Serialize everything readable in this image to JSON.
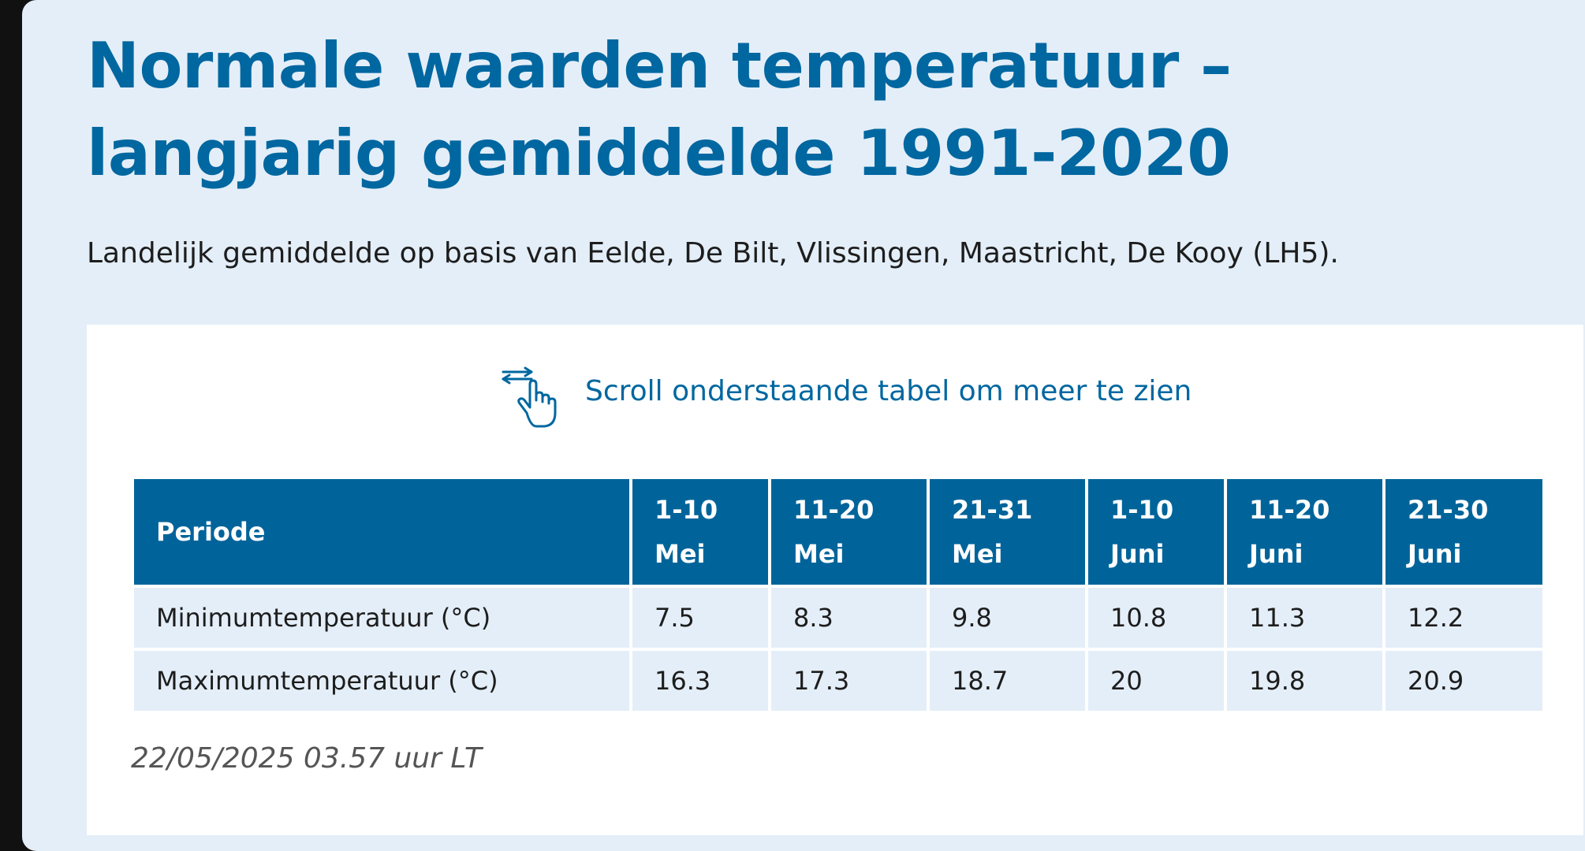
{
  "page": {
    "title": "Normale waarden temperatuur – langjarig gemiddelde 1991-2020",
    "subtitle": "Landelijk gemiddelde op basis van Eelde, De Bilt, Vlissingen, Maastricht, De Kooy (LH5)."
  },
  "scroll_hint": {
    "icon": "swipe-hand-icon",
    "label": "Scroll onderstaande tabel om meer te zien"
  },
  "table": {
    "header_label": "Periode",
    "columns": [
      {
        "line1": "1-10",
        "line2": "Mei"
      },
      {
        "line1": "11-20",
        "line2": "Mei"
      },
      {
        "line1": "21-31",
        "line2": "Mei"
      },
      {
        "line1": "1-10",
        "line2": "Juni"
      },
      {
        "line1": "11-20",
        "line2": "Juni"
      },
      {
        "line1": "21-30",
        "line2": "Juni"
      }
    ],
    "rows": [
      {
        "label": "Minimumtemperatuur (°C)",
        "values": [
          "7.5",
          "8.3",
          "9.8",
          "10.8",
          "11.3",
          "12.2"
        ]
      },
      {
        "label": "Maximumtemperatuur (°C)",
        "values": [
          "16.3",
          "17.3",
          "18.7",
          "20",
          "19.8",
          "20.9"
        ]
      }
    ]
  },
  "timestamp": "22/05/2025 03.57 uur LT",
  "colors": {
    "accent": "#0067a0",
    "header_bg": "#00649a",
    "panel_bg": "#e4eef8",
    "card_bg": "#ffffff"
  }
}
